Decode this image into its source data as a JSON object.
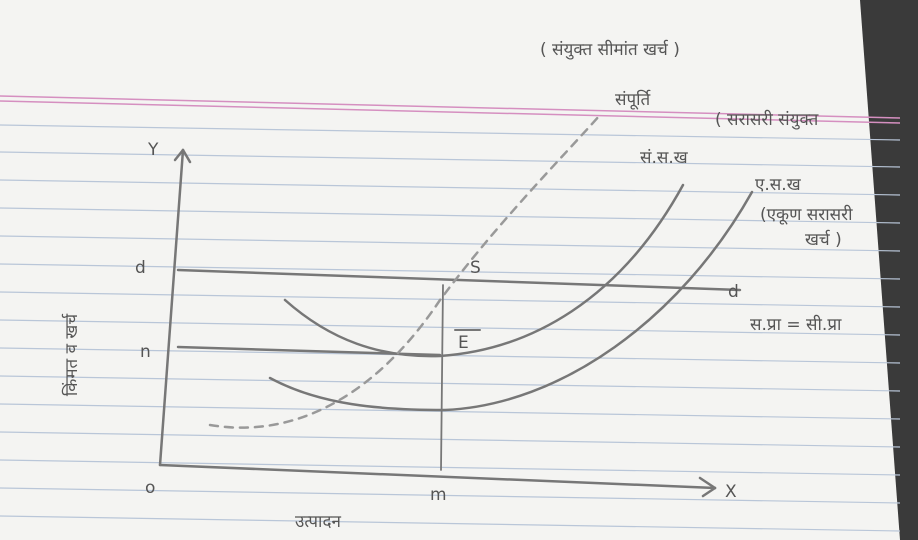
{
  "diagram": {
    "annotations": [
      "( संयुक्त सीमांत खर्च )",
      "संपूर्ति",
      "( सरासरी संयुक्त",
      "सं.स.ख",
      "ए.स.ख",
      "(एकूण सरासरी",
      "खर्च )",
      "स.प्रा = सी.प्रा"
    ],
    "axes": {
      "y_letter": "Y",
      "x_letter": "X",
      "y_label": "किंमत व खर्च",
      "x_label": "उत्पादन",
      "origin": "o"
    },
    "points": {
      "d_left": "d",
      "d_right": "d",
      "n": "n",
      "m": "m",
      "S": "S",
      "E": "E"
    }
  }
}
